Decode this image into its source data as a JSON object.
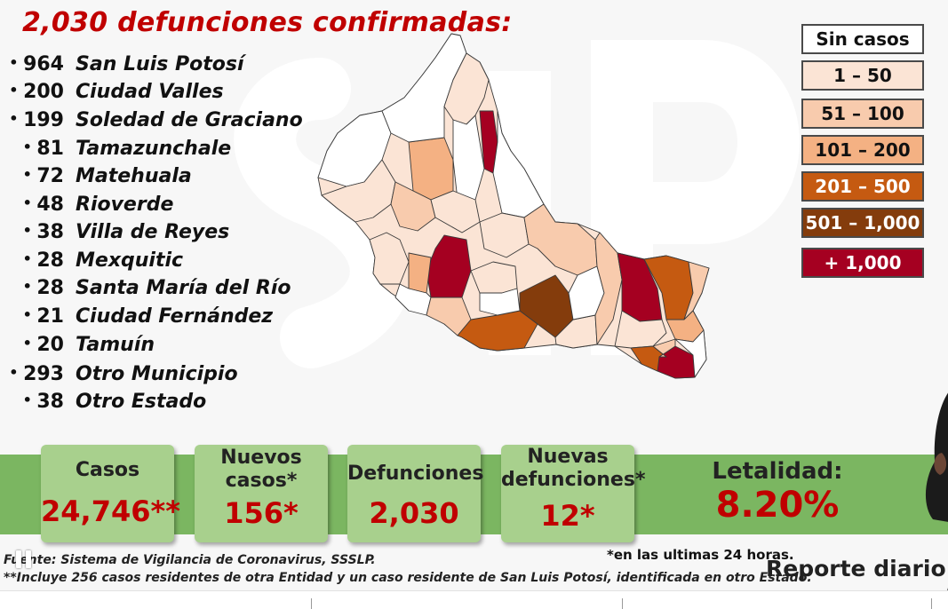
{
  "title": "2,030 defunciones confirmadas:",
  "municipios": [
    {
      "count": "964",
      "name": "San Luis Potosí"
    },
    {
      "count": "200",
      "name": "Ciudad Valles"
    },
    {
      "count": "199",
      "name": "Soledad de Graciano"
    },
    {
      "count": "81",
      "name": "Tamazunchale"
    },
    {
      "count": "72",
      "name": "Matehuala"
    },
    {
      "count": "48",
      "name": "Rioverde"
    },
    {
      "count": "38",
      "name": "Villa de Reyes"
    },
    {
      "count": "28",
      "name": "Mexquitic"
    },
    {
      "count": "28",
      "name": "Santa María del Río"
    },
    {
      "count": "21",
      "name": "Ciudad Fernández"
    },
    {
      "count": "20",
      "name": "Tamuín"
    },
    {
      "count": "293",
      "name": "Otro Municipio"
    },
    {
      "count": "38",
      "name": "Otro Estado"
    }
  ],
  "legend": [
    {
      "label": "Sin casos",
      "color": "#ffffff",
      "text_color": "#111111"
    },
    {
      "label": "1 – 50",
      "color": "#fbe4d5",
      "text_color": "#111111"
    },
    {
      "label": "51 – 100",
      "color": "#f8cbad",
      "text_color": "#111111"
    },
    {
      "label": "101 – 200",
      "color": "#f4b183",
      "text_color": "#111111"
    },
    {
      "label": "201 – 500",
      "color": "#c55a11",
      "text_color": "#ffffff"
    },
    {
      "label": "501 – 1,000",
      "color": "#843c0c",
      "text_color": "#ffffff"
    },
    {
      "label": "+ 1,000",
      "color": "#a50021",
      "text_color": "#ffffff"
    }
  ],
  "cards": {
    "casos": {
      "label": "Casos",
      "value": "24,746**"
    },
    "nuevos_casos": {
      "label_1": "Nuevos",
      "label_2": "casos*",
      "value": "156*"
    },
    "defunciones": {
      "label": "Defunciones",
      "value": "2,030"
    },
    "nuevas_defunciones": {
      "label_1": "Nuevas",
      "label_2": "defunciones*",
      "value": "12*"
    },
    "letalidad": {
      "label": "Letalidad:",
      "value": "8.20%"
    }
  },
  "footer": {
    "source": "Fuente: Sistema de Vigilancia de Coronavirus, SSSLP.",
    "note_cases": "**Incluye 256 casos residentes de otra Entidad y un caso residente de San Luis Potosí, identificada en otro Estado.",
    "note_24h": "*en las ultimas 24 horas.",
    "report": "Reporte diario"
  },
  "colors": {
    "accent_red": "#c00000",
    "band_green": "#7bb661",
    "card_green": "#a8d08d"
  },
  "icons": [
    "pause-icon"
  ]
}
